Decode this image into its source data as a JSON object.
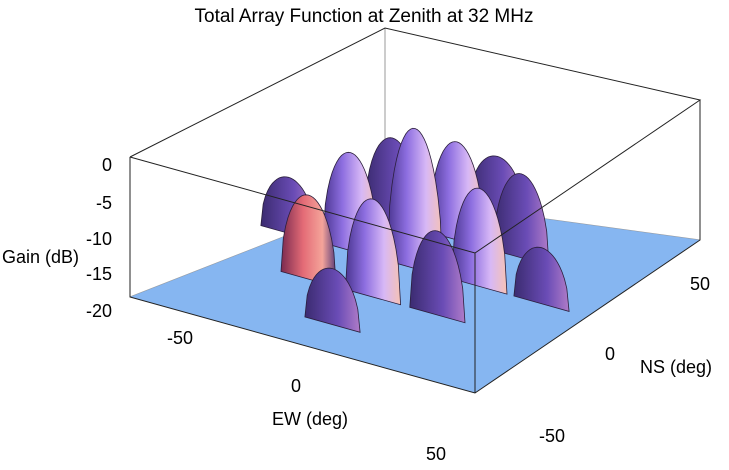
{
  "chart_data": {
    "type": "surface3d",
    "title": "Total Array Function at Zenith at 32 MHz",
    "zlabel": "Gain (dB)",
    "xlabel": "EW (deg)",
    "ylabel": "NS (deg)",
    "zlim": [
      -20,
      0
    ],
    "z_ticks": [
      "0",
      "-5",
      "-10",
      "-15",
      "-20"
    ],
    "x_ticks": [
      "-50",
      "0",
      "50"
    ],
    "y_ticks": [
      "-50",
      "0",
      "50"
    ],
    "floor_value": -20,
    "floor_color": "#7fb2f0",
    "lobe_colors": [
      "#3a2a6e",
      "#7a5ad0",
      "#c9a6f5",
      "#f3b7b0"
    ],
    "lobes": [
      {
        "ew": 0,
        "ns": 0,
        "peak": 0
      },
      {
        "ew": -28,
        "ns": 0,
        "peak": -6
      },
      {
        "ew": 28,
        "ns": 0,
        "peak": -6
      },
      {
        "ew": 0,
        "ns": -28,
        "peak": -6
      },
      {
        "ew": 0,
        "ns": 28,
        "peak": -6
      },
      {
        "ew": -28,
        "ns": -28,
        "peak": -8
      },
      {
        "ew": 28,
        "ns": 28,
        "peak": -8
      },
      {
        "ew": -28,
        "ns": 28,
        "peak": -8
      },
      {
        "ew": 28,
        "ns": -28,
        "peak": -8
      },
      {
        "ew": -55,
        "ns": 0,
        "peak": -12
      },
      {
        "ew": 55,
        "ns": 0,
        "peak": -12
      },
      {
        "ew": 0,
        "ns": -55,
        "peak": -12
      },
      {
        "ew": 0,
        "ns": 55,
        "peak": -12
      }
    ]
  }
}
